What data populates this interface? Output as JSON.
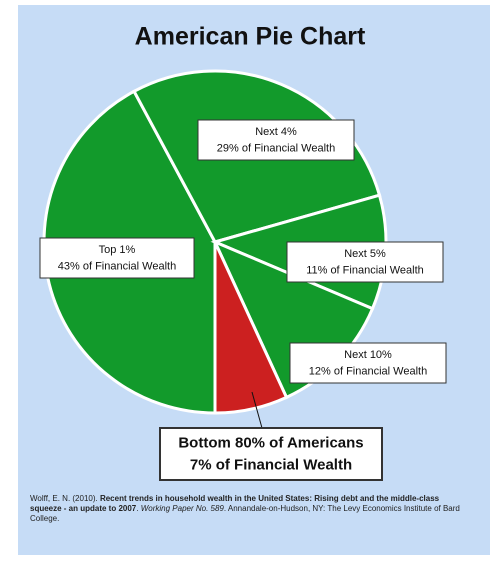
{
  "chart_data": {
    "type": "pie",
    "title": "American Pie Chart",
    "categories": [
      "Top 1%",
      "Next 4%",
      "Next 5%",
      "Next 10%",
      "Bottom 80% of Americans"
    ],
    "values": [
      43,
      29,
      11,
      12,
      7
    ],
    "value_labels": [
      "43% of Financial Wealth",
      "29% of Financial Wealth",
      "11% of Financial Wealth",
      "12% of Financial Wealth",
      "7% of Financial Wealth"
    ],
    "colors": [
      "#129a2b",
      "#129a2b",
      "#129a2b",
      "#129a2b",
      "#cc2020"
    ]
  },
  "source": [
    "Wolff, E. N. (2010). ",
    "Recent trends in household wealth in the United States: Rising debt and the middle-class squeeze - an update to 2007",
    ". ",
    "Working Paper No. 589",
    ". Annandale-on-Hudson, NY: The Levy Economics Institute of Bard College."
  ]
}
